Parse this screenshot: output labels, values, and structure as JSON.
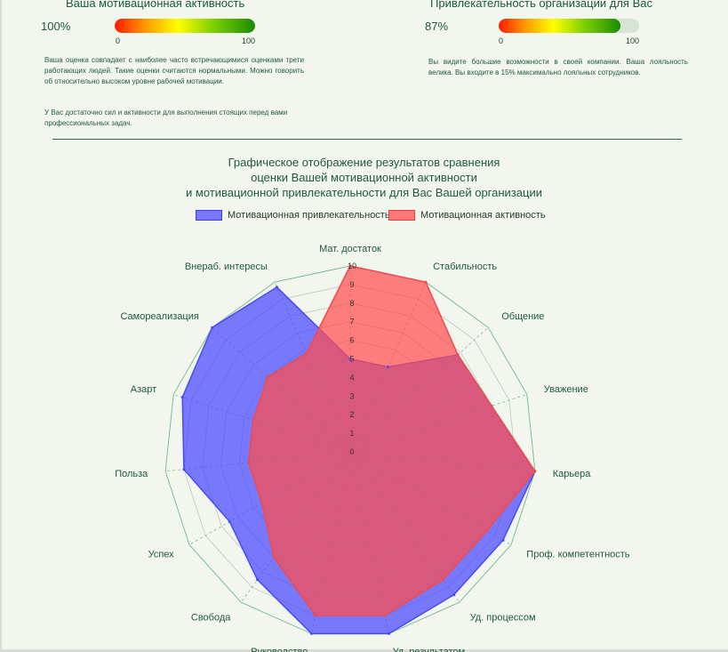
{
  "motivation_panel": {
    "title": "Ваша мотивационная активность",
    "percent_text": "100%",
    "value": 100,
    "scale_min": "0",
    "scale_max": "100",
    "description_1": "Ваша оценка совпадает с наиболее часто встречающимися оценками трети работающих людей. Такие оценки считаются нормальными. Можно говорить об относительно высоком уровне рабочей мотивации.",
    "description_2": "У Вас достаточно сил и активности для выполнения стоящих перед вами профессиональных задач."
  },
  "attractiveness_panel": {
    "title": "Привлекательность организации для Вас",
    "percent_text": "87%",
    "value": 87,
    "scale_min": "0",
    "scale_max": "100",
    "description_1": "Вы видите большие возможности в своей компании. Ваша лояльность велика. Вы входите в 15% максимально лояльных сотрудников."
  },
  "chart_data": {
    "type": "radar",
    "title_lines": [
      "Графическое отображение результатов сравнения",
      "оценки Вашей мотивационной активности",
      "и мотивационной привлекательности для Вас Вашей организации"
    ],
    "categories": [
      "Мат. достаток",
      "Стабильность",
      "Общение",
      "Уважение",
      "Карьера",
      "Проф. компетентность",
      "Уд. процессом",
      "Уд. результатом",
      "Руководство",
      "Свобода",
      "Успех",
      "Польза",
      "Азарт",
      "Самореализация",
      "Внераб. интересы"
    ],
    "range": [
      0,
      10
    ],
    "ticks": [
      "0",
      "1",
      "2",
      "3",
      "4",
      "5",
      "6",
      "7",
      "8",
      "9",
      "10"
    ],
    "series": [
      {
        "name": "Мотивационная привлекательность",
        "color": "#4d4dff",
        "values": [
          5,
          5,
          7.8,
          8,
          10,
          9.5,
          9.5,
          10,
          10,
          8.5,
          7.5,
          9,
          9.5,
          10,
          9.7
        ]
      },
      {
        "name": "Мотивационная активность",
        "color": "#ff4d4d",
        "values": [
          10,
          10,
          7.8,
          8,
          10,
          8.5,
          8.5,
          9,
          9,
          7,
          5.5,
          5.5,
          5.5,
          6,
          5.8
        ]
      }
    ],
    "legend_position": "top"
  }
}
